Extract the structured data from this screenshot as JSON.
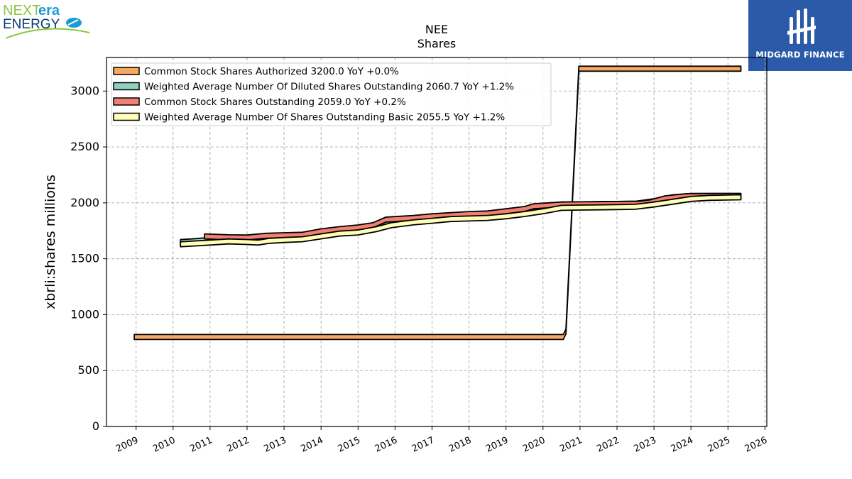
{
  "branding": {
    "company_logo_text_part1": "NEXT",
    "company_logo_text_part2": "era",
    "company_logo_text_line2": "ENERGY",
    "publisher_logo_text": "MIDGARD FINANCE",
    "publisher_logo_color": "#2a5aa8"
  },
  "chart_data": {
    "type": "line",
    "title": "NEE",
    "subtitle": "Shares",
    "ylabel": "xbrli:shares millions",
    "xlabel": "",
    "ylim": [
      0,
      3300
    ],
    "xlim": [
      2008.2,
      2026.05
    ],
    "yticks": [
      0,
      500,
      1000,
      1500,
      2000,
      2500,
      3000
    ],
    "xticks": [
      "2009",
      "2010",
      "2011",
      "2012",
      "2013",
      "2014",
      "2015",
      "2016",
      "2017",
      "2018",
      "2019",
      "2020",
      "2021",
      "2022",
      "2023",
      "2024",
      "2025",
      "2026"
    ],
    "grid": true,
    "legend_position": "top-left",
    "series": [
      {
        "name": "Common Stock Shares Authorized",
        "legend_label": "Common Stock Shares Authorized  3200.0 YoY +0.0%",
        "color": "#f5a860",
        "points": [
          [
            2008.95,
            800
          ],
          [
            2020.55,
            800
          ],
          [
            2020.62,
            850
          ],
          [
            2020.97,
            3200
          ],
          [
            2025.35,
            3200
          ]
        ]
      },
      {
        "name": "Weighted Average Number Of Diluted Shares Outstanding",
        "legend_label": "Weighted Average Number Of Diluted Shares Outstanding  2060.7 YoY +1.2%",
        "color": "#8fd0c0",
        "points": [
          [
            2010.2,
            1650
          ],
          [
            2010.5,
            1655
          ],
          [
            2011.0,
            1668
          ],
          [
            2011.5,
            1680
          ],
          [
            2012.0,
            1675
          ],
          [
            2012.3,
            1670
          ],
          [
            2012.6,
            1695
          ],
          [
            2013.0,
            1698
          ],
          [
            2013.5,
            1700
          ],
          [
            2014.0,
            1730
          ],
          [
            2014.5,
            1750
          ],
          [
            2015.0,
            1760
          ],
          [
            2015.5,
            1790
          ],
          [
            2015.9,
            1830
          ],
          [
            2016.5,
            1850
          ],
          [
            2017.0,
            1865
          ],
          [
            2017.5,
            1880
          ],
          [
            2018.0,
            1890
          ],
          [
            2018.5,
            1895
          ],
          [
            2019.0,
            1915
          ],
          [
            2019.5,
            1930
          ],
          [
            2020.0,
            1960
          ],
          [
            2020.5,
            1985
          ],
          [
            2021.0,
            1985
          ],
          [
            2021.5,
            1988
          ],
          [
            2022.0,
            1990
          ],
          [
            2022.5,
            1992
          ],
          [
            2023.0,
            2015
          ],
          [
            2023.5,
            2050
          ],
          [
            2024.0,
            2062
          ],
          [
            2024.5,
            2062
          ],
          [
            2025.35,
            2062
          ]
        ]
      },
      {
        "name": "Common Stock Shares Outstanding",
        "legend_label": "Common Stock Shares Outstanding  2059.0 YoY +0.2%",
        "color": "#f08070",
        "points": [
          [
            2010.85,
            1700
          ],
          [
            2011.5,
            1692
          ],
          [
            2012.0,
            1690
          ],
          [
            2012.5,
            1705
          ],
          [
            2013.0,
            1710
          ],
          [
            2013.5,
            1715
          ],
          [
            2014.0,
            1745
          ],
          [
            2014.5,
            1765
          ],
          [
            2015.0,
            1780
          ],
          [
            2015.4,
            1800
          ],
          [
            2015.75,
            1850
          ],
          [
            2016.0,
            1855
          ],
          [
            2016.5,
            1865
          ],
          [
            2017.0,
            1880
          ],
          [
            2017.5,
            1890
          ],
          [
            2018.0,
            1900
          ],
          [
            2018.5,
            1905
          ],
          [
            2019.0,
            1925
          ],
          [
            2019.5,
            1945
          ],
          [
            2019.75,
            1970
          ],
          [
            2020.0,
            1975
          ],
          [
            2020.5,
            1985
          ],
          [
            2021.0,
            1987
          ],
          [
            2021.5,
            1988
          ],
          [
            2022.0,
            1990
          ],
          [
            2022.6,
            1992
          ],
          [
            2022.9,
            2005
          ],
          [
            2023.3,
            2040
          ],
          [
            2023.9,
            2060
          ],
          [
            2024.5,
            2062
          ],
          [
            2025.35,
            2062
          ]
        ]
      },
      {
        "name": "Weighted Average Number Of Shares Outstanding Basic",
        "legend_label": "Weighted Average Number Of Shares Outstanding Basic  2055.5 YoY +1.2%",
        "color": "#ffffb8",
        "points": [
          [
            2010.2,
            1630
          ],
          [
            2010.5,
            1635
          ],
          [
            2011.0,
            1645
          ],
          [
            2011.5,
            1655
          ],
          [
            2012.0,
            1650
          ],
          [
            2012.3,
            1645
          ],
          [
            2012.6,
            1660
          ],
          [
            2013.0,
            1668
          ],
          [
            2013.5,
            1675
          ],
          [
            2014.0,
            1700
          ],
          [
            2014.5,
            1725
          ],
          [
            2015.0,
            1735
          ],
          [
            2015.5,
            1765
          ],
          [
            2015.9,
            1800
          ],
          [
            2016.5,
            1825
          ],
          [
            2017.0,
            1840
          ],
          [
            2017.5,
            1855
          ],
          [
            2018.0,
            1860
          ],
          [
            2018.5,
            1865
          ],
          [
            2019.0,
            1880
          ],
          [
            2019.5,
            1900
          ],
          [
            2020.0,
            1925
          ],
          [
            2020.5,
            1955
          ],
          [
            2021.0,
            1958
          ],
          [
            2021.5,
            1960
          ],
          [
            2022.0,
            1962
          ],
          [
            2022.5,
            1965
          ],
          [
            2023.0,
            1985
          ],
          [
            2023.5,
            2010
          ],
          [
            2024.0,
            2035
          ],
          [
            2024.5,
            2045
          ],
          [
            2025.35,
            2050
          ]
        ]
      }
    ]
  }
}
